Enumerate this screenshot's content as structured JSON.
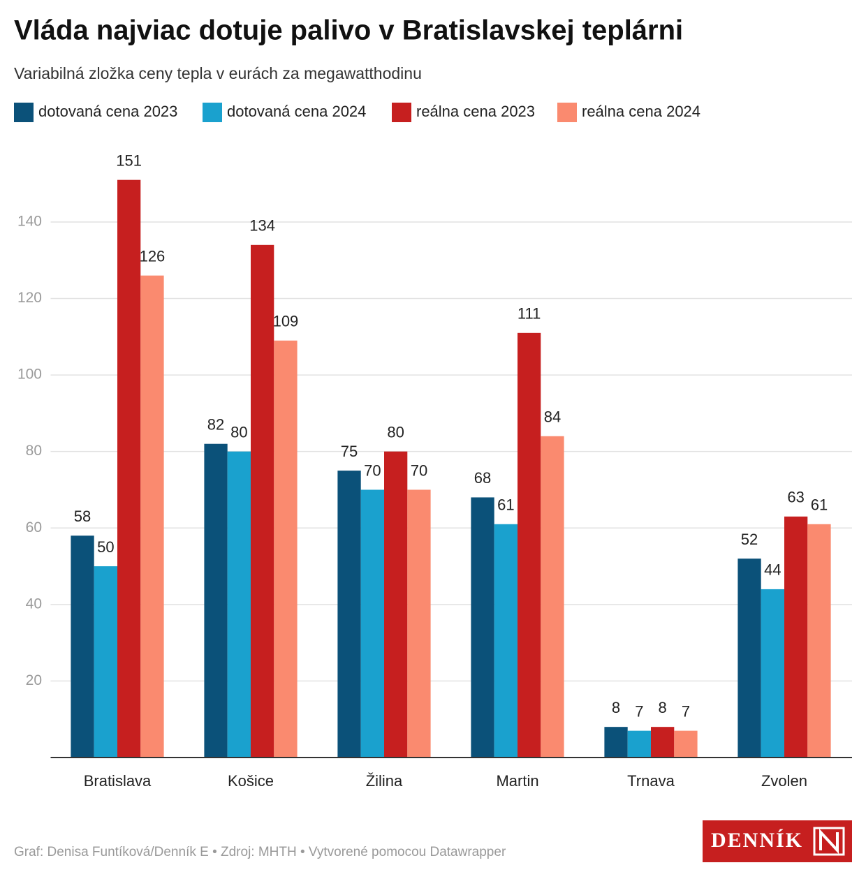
{
  "chart_data": {
    "type": "bar",
    "title": "Vláda najviac dotuje palivo v Bratislavskej teplárni",
    "subtitle": "Variabilná zložka ceny tepla v eurách za megawatthodinu",
    "categories": [
      "Bratislava",
      "Košice",
      "Žilina",
      "Martin",
      "Trnava",
      "Zvolen"
    ],
    "series": [
      {
        "name": "dotovaná cena 2023",
        "color": "#0b5179",
        "values": [
          58,
          82,
          75,
          68,
          8,
          52
        ]
      },
      {
        "name": "dotovaná cena 2024",
        "color": "#1aa1ce",
        "values": [
          50,
          80,
          70,
          61,
          7,
          44
        ]
      },
      {
        "name": "reálna cena 2023",
        "color": "#c61f1f",
        "values": [
          151,
          134,
          80,
          111,
          8,
          63
        ]
      },
      {
        "name": "reálna cena 2024",
        "color": "#fa8a6f",
        "values": [
          126,
          109,
          70,
          84,
          7,
          61
        ]
      }
    ],
    "ylim": [
      0,
      160
    ],
    "yticks": [
      20,
      40,
      60,
      80,
      100,
      120,
      140
    ],
    "grid": true,
    "legend": "top",
    "footer": "Graf: Denisa Funtíková/Denník E • Zdroj: MHTH • Vytvorené pomocou Datawrapper",
    "logo": "DENNÍK"
  }
}
